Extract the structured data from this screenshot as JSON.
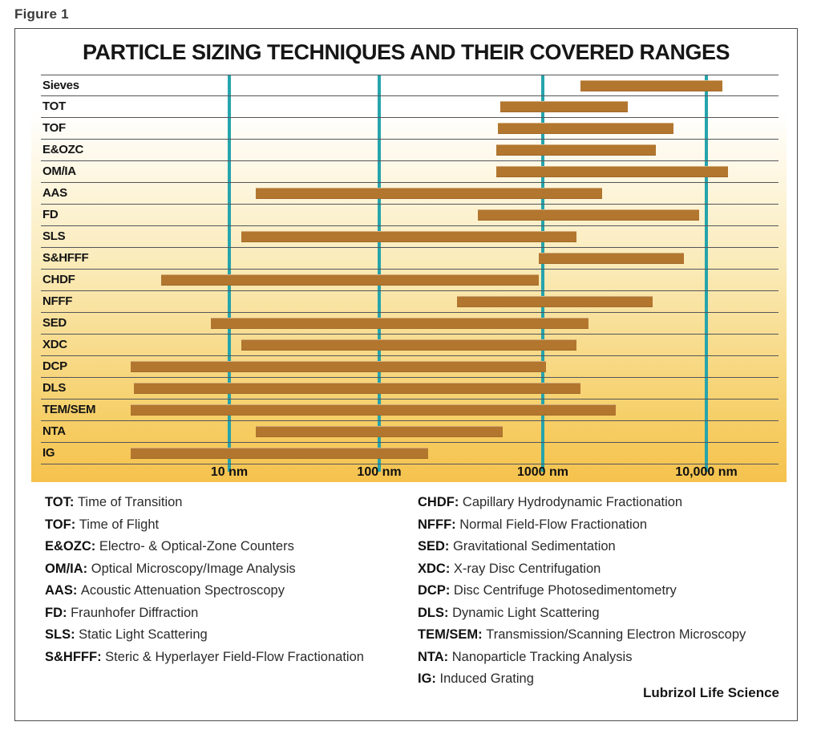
{
  "figure_label": "Figure 1",
  "title": "PARTICLE SIZING TECHNIQUES AND THEIR COVERED RANGES",
  "credit": "Lubrizol Life Science",
  "colors": {
    "bar": "#b2762f",
    "gridline": "#26a4ac",
    "row_line": "#54555a",
    "plot_background_bottom": "#f5c24d",
    "text": "#161616"
  },
  "chart_data": {
    "type": "bar",
    "orientation": "horizontal-range",
    "title": "PARTICLE SIZING TECHNIQUES AND THEIR COVERED RANGES",
    "x_axis": {
      "scale": "log",
      "unit": "nm",
      "range_nm": [
        1,
        30000
      ],
      "grid": true,
      "ticks": [
        {
          "value": 10,
          "label": "10 nm"
        },
        {
          "value": 100,
          "label": "100 nm"
        },
        {
          "value": 1000,
          "label": "1000 nm"
        },
        {
          "value": 10000,
          "label": "10,000 nm"
        }
      ]
    },
    "series": [
      {
        "label": "Sieves",
        "range_nm": [
          1700,
          12500
        ]
      },
      {
        "label": "TOT",
        "range_nm": [
          550,
          3300
        ]
      },
      {
        "label": "TOF",
        "range_nm": [
          530,
          6300
        ]
      },
      {
        "label": "E&OZC",
        "range_nm": [
          520,
          4900
        ]
      },
      {
        "label": "OM/IA",
        "range_nm": [
          520,
          13500
        ]
      },
      {
        "label": "AAS",
        "range_nm": [
          15,
          2300
        ]
      },
      {
        "label": "FD",
        "range_nm": [
          400,
          9000
        ]
      },
      {
        "label": "SLS",
        "range_nm": [
          12,
          1600
        ]
      },
      {
        "label": "S&HFFF",
        "range_nm": [
          950,
          7300
        ]
      },
      {
        "label": "CHDF",
        "range_nm": [
          3.5,
          950
        ]
      },
      {
        "label": "NFFF",
        "range_nm": [
          300,
          4700
        ]
      },
      {
        "label": "SED",
        "range_nm": [
          7.5,
          1900
        ]
      },
      {
        "label": "XDC",
        "range_nm": [
          12,
          1600
        ]
      },
      {
        "label": "DCP",
        "range_nm": [
          2.2,
          1050
        ]
      },
      {
        "label": "DLS",
        "range_nm": [
          2.3,
          1700
        ]
      },
      {
        "label": "TEM/SEM",
        "range_nm": [
          2.2,
          2800
        ]
      },
      {
        "label": "NTA",
        "range_nm": [
          15,
          570
        ]
      },
      {
        "label": "IG",
        "range_nm": [
          2.2,
          200
        ]
      }
    ]
  },
  "legend": {
    "left": [
      {
        "abbr": "TOT:",
        "definition": "Time of Transition"
      },
      {
        "abbr": "TOF:",
        "definition": "Time of Flight"
      },
      {
        "abbr": "E&OZC:",
        "definition": "Electro- & Optical-Zone Counters"
      },
      {
        "abbr": "OM/IA:",
        "definition": "Optical Microscopy/Image Analysis"
      },
      {
        "abbr": "AAS:",
        "definition": "Acoustic Attenuation Spectroscopy"
      },
      {
        "abbr": "FD:",
        "definition": "Fraunhofer Diffraction"
      },
      {
        "abbr": "SLS:",
        "definition": "Static Light Scattering"
      },
      {
        "abbr": "S&HFFF:",
        "definition": "Steric & Hyperlayer Field-Flow Fractionation"
      }
    ],
    "right": [
      {
        "abbr": "CHDF:",
        "definition": "Capillary Hydrodynamic Fractionation"
      },
      {
        "abbr": "NFFF:",
        "definition": "Normal Field-Flow Fractionation"
      },
      {
        "abbr": "SED:",
        "definition": "Gravitational Sedimentation"
      },
      {
        "abbr": "XDC:",
        "definition": "X-ray Disc Centrifugation"
      },
      {
        "abbr": "DCP:",
        "definition": "Disc Centrifuge Photosedimentometry"
      },
      {
        "abbr": "DLS:",
        "definition": "Dynamic Light Scattering"
      },
      {
        "abbr": "TEM/SEM:",
        "definition": "Transmission/Scanning Electron Microscopy"
      },
      {
        "abbr": "NTA:",
        "definition": "Nanoparticle Tracking Analysis"
      },
      {
        "abbr": "IG:",
        "definition": "Induced Grating"
      }
    ]
  }
}
